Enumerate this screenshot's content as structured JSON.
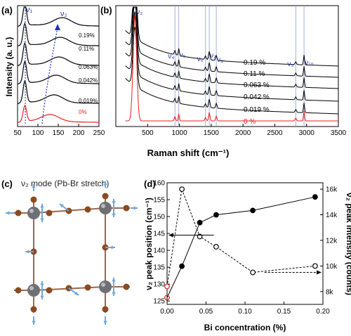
{
  "colors": {
    "black": "#000000",
    "red": "#e8201f",
    "blue_label": "#2f3aa0",
    "vline": "#8e9bd8",
    "arrow": "#1f2fb0",
    "pb": "#6e7075",
    "br": "#8b4a22",
    "arrow_blue": "#6fa8de"
  },
  "panels": {
    "a": {
      "label": "(a)",
      "ylabel": "Intensity (a. u.)",
      "xticks": [
        "50",
        "100",
        "150",
        "200",
        "250"
      ],
      "nu1": "ν₁",
      "nu2": "ν₂",
      "curve_labels": [
        "0.19%",
        "0.11%",
        "0.063%",
        "0.042%",
        "0.019%",
        "0%"
      ]
    },
    "b": {
      "label": "(b)",
      "xlabel": "Raman shift (cm⁻¹)",
      "xticks": [
        "500",
        "1000",
        "1500",
        "2000",
        "2500",
        "3000",
        "3500"
      ],
      "mode_labels": [
        "ν₃",
        "ν₄",
        "ν₅",
        "ν₆",
        "ν₇",
        "ν₈",
        "ν₉",
        "ν₁₀"
      ],
      "curve_labels": [
        "0.19 %",
        "0.11 %",
        "0.063 %",
        "0.042 %",
        "0.019 %",
        "0 %"
      ]
    },
    "c": {
      "label": "(c)",
      "title": "ν₂ mode (Pb-Br stretch)"
    },
    "d": {
      "label": "(d)",
      "xlabel": "Bi concentration (%)",
      "ylabel_left": "ν₂ peak position (cm⁻¹)",
      "ylabel_right": "ν₂ peak intensity (counts)"
    }
  },
  "chart_data": [
    {
      "type": "line",
      "panel": "a",
      "xlabel": "",
      "ylabel": "Intensity (a. u.)",
      "xlim": [
        50,
        250
      ],
      "series": [
        {
          "name": "0.19%"
        },
        {
          "name": "0.11%"
        },
        {
          "name": "0.063%"
        },
        {
          "name": "0.042%"
        },
        {
          "name": "0.019%"
        },
        {
          "name": "0%"
        }
      ]
    },
    {
      "type": "line",
      "panel": "b",
      "xlabel": "Raman shift (cm⁻¹)",
      "xlim": [
        0,
        3500
      ],
      "series": [
        {
          "name": "0.19 %"
        },
        {
          "name": "0.11 %"
        },
        {
          "name": "0.063 %"
        },
        {
          "name": "0.042 %"
        },
        {
          "name": "0.019 %"
        },
        {
          "name": "0 %"
        }
      ]
    },
    {
      "type": "line",
      "panel": "d",
      "xlabel": "Bi concentration (%)",
      "ylabel": "ν₂ peak position (cm⁻¹)",
      "ylabel_right": "ν₂ peak intensity (counts)",
      "xlim": [
        0,
        0.2
      ],
      "ylim_left": [
        124,
        160
      ],
      "ylim_right": [
        7000,
        16500
      ],
      "xticks": [
        0.0,
        0.05,
        0.1,
        0.15,
        0.2
      ],
      "yticks_left": [
        125,
        130,
        135,
        140,
        145,
        150,
        155,
        160
      ],
      "yticks_right": [
        "8k",
        "10k",
        "12k",
        "14k",
        "16k"
      ],
      "series": [
        {
          "axis": "left",
          "style": "solid-filled",
          "x": [
            0.0,
            0.019,
            0.042,
            0.063,
            0.11,
            0.19
          ],
          "y": [
            126,
            135.3,
            148.2,
            150.5,
            151.8,
            155.8
          ]
        },
        {
          "axis": "right",
          "style": "dashed-open",
          "x": [
            0.0,
            0.019,
            0.042,
            0.063,
            0.11,
            0.19
          ],
          "y": [
            8400,
            16000,
            12300,
            11500,
            9500,
            10000
          ]
        }
      ]
    }
  ]
}
